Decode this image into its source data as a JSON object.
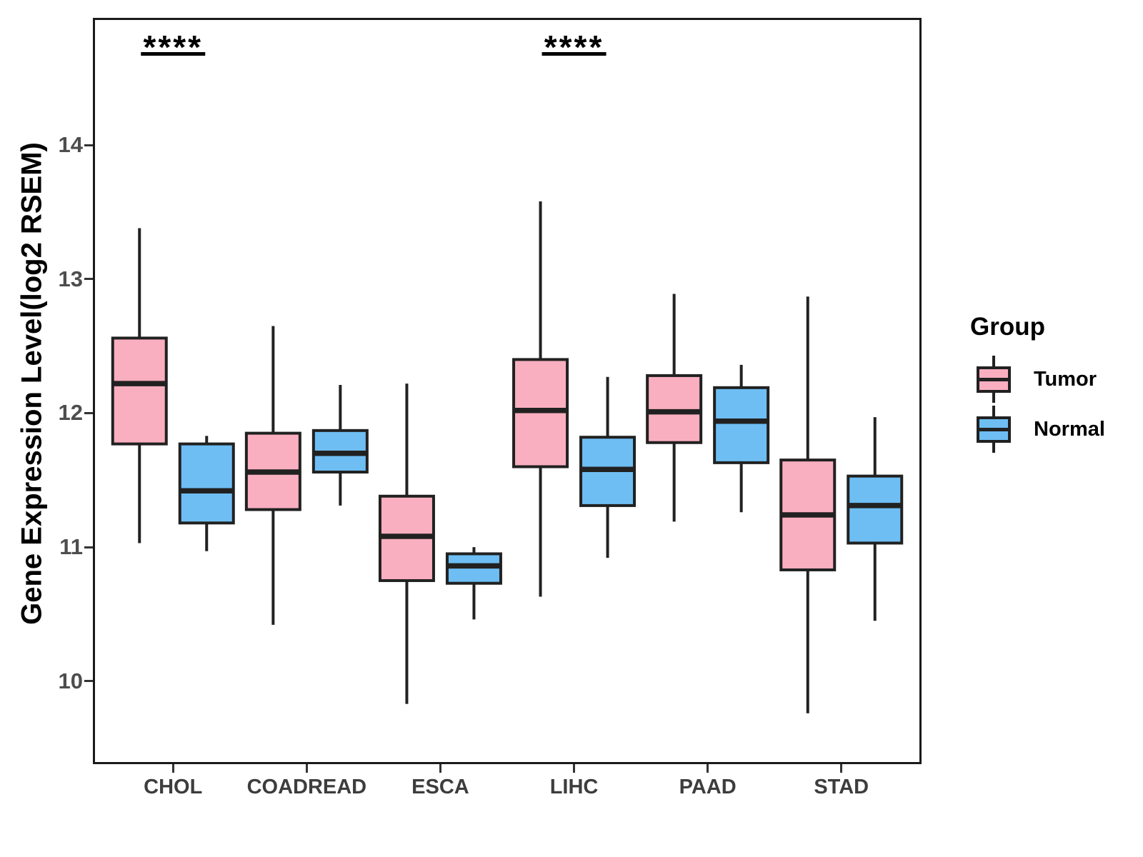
{
  "figure": {
    "background": "#FFFFFF",
    "panel_border_color": "#1A1A1A"
  },
  "chart_data": {
    "type": "boxplot",
    "title": "",
    "xlabel": "",
    "ylabel": "Gene Expression Level(log2 RSEM)",
    "ylim": [
      9.38,
      14.95
    ],
    "yticks": [
      14,
      13,
      12,
      11,
      10
    ],
    "grid": "off",
    "legend": {
      "title": "Group",
      "position": "right"
    },
    "categories": [
      "CHOL",
      "COADREAD",
      "ESCA",
      "LIHC",
      "PAAD",
      "STAD"
    ],
    "groups": [
      {
        "name": "Tumor",
        "fill": "#FAAFC0"
      },
      {
        "name": "Normal",
        "fill": "#6EBEF3"
      }
    ],
    "stroke_color": "#212121",
    "series": [
      {
        "name": "Tumor",
        "boxes": [
          {
            "category": "CHOL",
            "min": 11.03,
            "q1": 11.77,
            "median": 12.22,
            "q3": 12.56,
            "max": 13.38
          },
          {
            "category": "COADREAD",
            "min": 10.42,
            "q1": 11.28,
            "median": 11.56,
            "q3": 11.85,
            "max": 12.65
          },
          {
            "category": "ESCA",
            "min": 9.83,
            "q1": 10.75,
            "median": 11.08,
            "q3": 11.38,
            "max": 12.22
          },
          {
            "category": "LIHC",
            "min": 10.63,
            "q1": 11.6,
            "median": 12.02,
            "q3": 12.4,
            "max": 13.58
          },
          {
            "category": "PAAD",
            "min": 11.19,
            "q1": 11.78,
            "median": 12.01,
            "q3": 12.28,
            "max": 12.89
          },
          {
            "category": "STAD",
            "min": 9.76,
            "q1": 10.83,
            "median": 11.24,
            "q3": 11.65,
            "max": 12.87
          }
        ]
      },
      {
        "name": "Normal",
        "boxes": [
          {
            "category": "CHOL",
            "min": 10.97,
            "q1": 11.18,
            "median": 11.42,
            "q3": 11.77,
            "max": 11.83
          },
          {
            "category": "COADREAD",
            "min": 11.31,
            "q1": 11.56,
            "median": 11.7,
            "q3": 11.87,
            "max": 12.21
          },
          {
            "category": "ESCA",
            "min": 10.46,
            "q1": 10.73,
            "median": 10.86,
            "q3": 10.95,
            "max": 11.0
          },
          {
            "category": "LIHC",
            "min": 10.92,
            "q1": 11.31,
            "median": 11.58,
            "q3": 11.82,
            "max": 12.27
          },
          {
            "category": "PAAD",
            "min": 11.26,
            "q1": 11.63,
            "median": 11.94,
            "q3": 12.19,
            "max": 12.36
          },
          {
            "category": "STAD",
            "min": 10.45,
            "q1": 11.03,
            "median": 11.31,
            "q3": 11.53,
            "max": 11.97
          }
        ]
      }
    ],
    "annotations": [
      {
        "category": "CHOL",
        "text": "****"
      },
      {
        "category": "LIHC",
        "text": "****"
      }
    ]
  }
}
